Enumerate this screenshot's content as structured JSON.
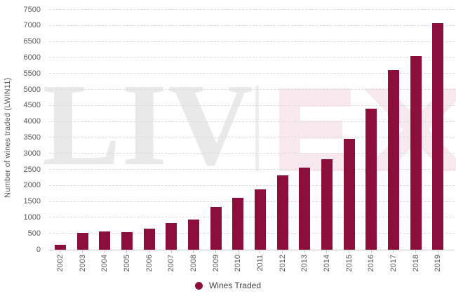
{
  "chart_data": {
    "type": "bar",
    "title": "",
    "xlabel": "",
    "ylabel": "Number of wines traded (LWIN11)",
    "categories": [
      "2002",
      "2003",
      "2004",
      "2005",
      "2006",
      "2007",
      "2008",
      "2009",
      "2010",
      "2011",
      "2012",
      "2013",
      "2014",
      "2015",
      "2016",
      "2017",
      "2018",
      "2019"
    ],
    "values": [
      150,
      520,
      570,
      560,
      660,
      840,
      940,
      1330,
      1630,
      1890,
      2330,
      2570,
      2830,
      3470,
      4400,
      5620,
      6050,
      7080
    ],
    "ylim": [
      0,
      7500
    ],
    "ytick_step": 500,
    "grid": "horizontal-dashed",
    "legend_position": "bottom-center",
    "legend": {
      "label": "Wines Traded",
      "marker": "circle"
    }
  },
  "colors": {
    "bar": "#8c0e3c",
    "legend_dot": "#8c0e3c",
    "gridline": "#dcdcdc",
    "axis_line": "#c9c9c9",
    "tick_text": "#595959",
    "legend_text": "#444444",
    "watermark_gray": "#e9e9e9",
    "watermark_pink": "#f7e9ee"
  },
  "watermark": {
    "brand": "LIV|EX",
    "left": "LIV",
    "right": "EX"
  }
}
